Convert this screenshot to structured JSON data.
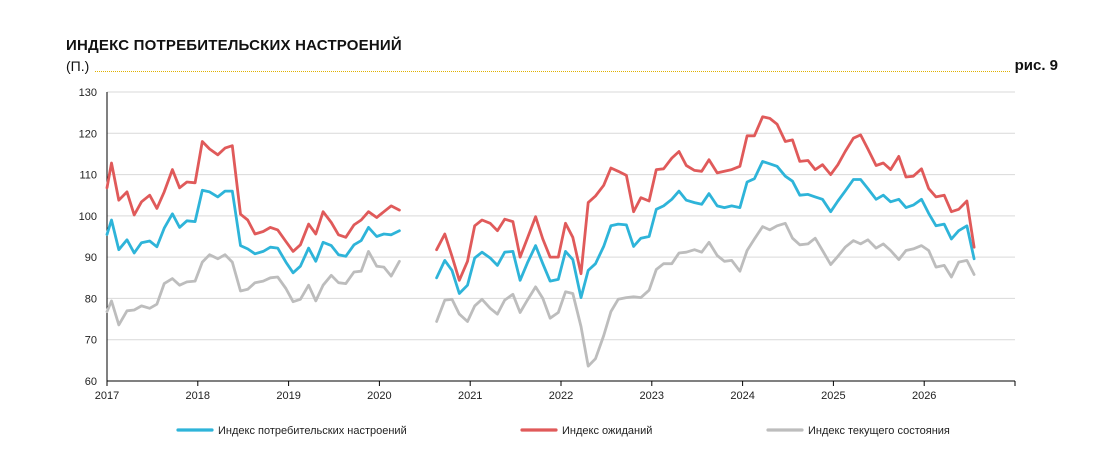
{
  "header": {
    "title": "ИНДЕКС ПОТРЕБИТЕЛЬСКИХ НАСТРОЕНИЙ",
    "unit": "(П.)",
    "figure": "рис. 9"
  },
  "chart_data": {
    "type": "line",
    "ylim": [
      60,
      130
    ],
    "yticks": [
      60,
      70,
      80,
      90,
      100,
      110,
      120,
      130
    ],
    "xlim": [
      2017.0,
      2027.0
    ],
    "xticks": [
      "2017",
      "2018",
      "2019",
      "2020",
      "2021",
      "2022",
      "2023",
      "2024",
      "2025",
      "2026"
    ],
    "grid": "horizontal",
    "legend_position": "bottom",
    "colors": {
      "axis": "#000000",
      "grid": "#d9d9d9",
      "rule": "#e0b200"
    },
    "series": [
      {
        "name": "Индекс потребительских настроений",
        "color": "#2eb4d9",
        "segments": [
          {
            "x": [
              2017.0,
              2017.05,
              2017.13,
              2017.22,
              2017.3,
              2017.38,
              2017.47,
              2017.55,
              2017.63,
              2017.72,
              2017.8,
              2017.88,
              2017.97,
              2018.05,
              2018.13,
              2018.22,
              2018.3,
              2018.38,
              2018.47,
              2018.55,
              2018.63,
              2018.72,
              2018.8,
              2018.88,
              2018.97,
              2019.05,
              2019.13,
              2019.22,
              2019.3,
              2019.38,
              2019.47,
              2019.55,
              2019.63,
              2019.72,
              2019.8,
              2019.88,
              2019.97,
              2020.05,
              2020.13,
              2020.22
            ],
            "y": [
              95.5,
              99.0,
              91.8,
              94.2,
              91.0,
              93.5,
              93.9,
              92.5,
              97.0,
              100.5,
              97.2,
              98.8,
              98.6,
              106.2,
              105.8,
              104.6,
              106.0,
              106.0,
              92.8,
              92.0,
              90.8,
              91.4,
              92.4,
              92.2,
              88.8,
              86.2,
              87.8,
              92.2,
              89.0,
              93.6,
              92.8,
              90.6,
              90.2,
              93.0,
              94.0,
              97.2,
              95.0,
              95.6,
              95.4,
              96.4
            ]
          },
          {
            "x": [
              2020.63,
              2020.72,
              2020.8,
              2020.88,
              2020.97,
              2021.05,
              2021.13,
              2021.22,
              2021.3,
              2021.38,
              2021.47,
              2021.55,
              2021.63,
              2021.72,
              2021.8,
              2021.88,
              2021.97,
              2022.05,
              2022.13,
              2022.22,
              2022.3,
              2022.38,
              2022.47,
              2022.55,
              2022.63,
              2022.72,
              2022.8,
              2022.88,
              2022.97,
              2023.05,
              2023.13,
              2023.22,
              2023.3,
              2023.38,
              2023.47,
              2023.55,
              2023.63,
              2023.72,
              2023.8,
              2023.88,
              2023.97,
              2024.05,
              2024.13,
              2024.22,
              2024.3,
              2024.38,
              2024.47,
              2024.55,
              2024.63,
              2024.72,
              2024.8,
              2024.88,
              2024.97,
              2025.05,
              2025.13,
              2025.22,
              2025.3,
              2025.38,
              2025.47,
              2025.55,
              2025.63,
              2025.72,
              2025.8,
              2025.88,
              2025.97,
              2026.05,
              2026.13,
              2026.22,
              2026.3,
              2026.38,
              2026.47,
              2026.55
            ],
            "y": [
              85.0,
              89.2,
              86.8,
              81.2,
              83.2,
              89.8,
              91.2,
              89.8,
              88.0,
              91.2,
              91.4,
              84.4,
              88.6,
              92.8,
              88.4,
              84.2,
              84.6,
              91.4,
              89.4,
              80.2,
              86.8,
              88.4,
              92.6,
              97.6,
              98.0,
              97.8,
              92.6,
              94.6,
              95.0,
              101.6,
              102.4,
              104.0,
              106.0,
              103.8,
              103.2,
              102.8,
              105.4,
              102.4,
              102.0,
              102.4,
              102.0,
              108.2,
              109.0,
              113.2,
              112.6,
              112.0,
              109.6,
              108.4,
              105.0,
              105.2,
              104.6,
              104.0,
              101.0,
              103.6,
              106.0,
              108.8,
              108.8,
              106.6,
              104.0,
              105.0,
              103.4,
              104.0,
              102.0,
              102.6,
              104.0,
              100.6,
              97.6,
              98.0,
              94.4,
              96.4,
              97.6,
              89.6
            ]
          }
        ]
      },
      {
        "name": "Индекс ожиданий",
        "color": "#e05a5a",
        "segments": [
          {
            "x": [
              2017.0,
              2017.05,
              2017.13,
              2017.22,
              2017.3,
              2017.38,
              2017.47,
              2017.55,
              2017.63,
              2017.72,
              2017.8,
              2017.88,
              2017.97,
              2018.05,
              2018.13,
              2018.22,
              2018.3,
              2018.38,
              2018.47,
              2018.55,
              2018.63,
              2018.72,
              2018.8,
              2018.88,
              2018.97,
              2019.05,
              2019.13,
              2019.22,
              2019.3,
              2019.38,
              2019.47,
              2019.55,
              2019.63,
              2019.72,
              2019.8,
              2019.88,
              2019.97,
              2020.05,
              2020.13,
              2020.22
            ],
            "y": [
              106.8,
              112.8,
              103.8,
              105.8,
              100.2,
              103.4,
              105.0,
              101.8,
              105.8,
              111.2,
              106.8,
              108.2,
              108.0,
              118.0,
              116.2,
              114.8,
              116.4,
              117.0,
              100.4,
              99.0,
              95.6,
              96.2,
              97.2,
              96.6,
              93.8,
              91.4,
              93.0,
              98.0,
              95.6,
              101.0,
              98.4,
              95.4,
              94.8,
              97.8,
              99.0,
              101.0,
              99.6,
              101.0,
              102.4,
              101.4
            ]
          },
          {
            "x": [
              2020.63,
              2020.72,
              2020.8,
              2020.88,
              2020.97,
              2021.05,
              2021.13,
              2021.22,
              2021.3,
              2021.38,
              2021.47,
              2021.55,
              2021.63,
              2021.72,
              2021.8,
              2021.88,
              2021.97,
              2022.05,
              2022.13,
              2022.22,
              2022.3,
              2022.38,
              2022.47,
              2022.55,
              2022.63,
              2022.72,
              2022.8,
              2022.88,
              2022.97,
              2023.05,
              2023.13,
              2023.22,
              2023.3,
              2023.38,
              2023.47,
              2023.55,
              2023.63,
              2023.72,
              2023.8,
              2023.88,
              2023.97,
              2024.05,
              2024.13,
              2024.22,
              2024.3,
              2024.38,
              2024.47,
              2024.55,
              2024.63,
              2024.72,
              2024.8,
              2024.88,
              2024.97,
              2025.05,
              2025.13,
              2025.22,
              2025.3,
              2025.38,
              2025.47,
              2025.55,
              2025.63,
              2025.72,
              2025.8,
              2025.88,
              2025.97,
              2026.05,
              2026.13,
              2026.22,
              2026.3,
              2026.38,
              2026.47,
              2026.55
            ],
            "y": [
              91.8,
              95.6,
              90.2,
              84.4,
              89.0,
              97.6,
              99.0,
              98.2,
              96.4,
              99.2,
              98.6,
              90.0,
              94.6,
              99.8,
              94.4,
              90.0,
              90.0,
              98.2,
              94.8,
              86.0,
              103.2,
              104.8,
              107.4,
              111.6,
              110.8,
              109.8,
              101.0,
              104.4,
              103.6,
              111.2,
              111.4,
              114.0,
              115.6,
              112.2,
              111.0,
              110.8,
              113.6,
              110.4,
              110.8,
              111.2,
              112.0,
              119.4,
              119.4,
              124.0,
              123.6,
              122.2,
              118.0,
              118.4,
              113.2,
              113.4,
              111.2,
              112.4,
              110.0,
              112.4,
              115.6,
              118.8,
              119.6,
              116.2,
              112.2,
              112.8,
              111.2,
              114.4,
              109.4,
              109.6,
              111.4,
              106.6,
              104.6,
              105.0,
              101.0,
              101.6,
              103.6,
              92.4
            ]
          }
        ]
      },
      {
        "name": "Индекс текущего состояния",
        "color": "#bdbdbd",
        "segments": [
          {
            "x": [
              2017.0,
              2017.05,
              2017.13,
              2017.22,
              2017.3,
              2017.38,
              2017.47,
              2017.55,
              2017.63,
              2017.72,
              2017.8,
              2017.88,
              2017.97,
              2018.05,
              2018.13,
              2018.22,
              2018.3,
              2018.38,
              2018.47,
              2018.55,
              2018.63,
              2018.72,
              2018.8,
              2018.88,
              2018.97,
              2019.05,
              2019.13,
              2019.22,
              2019.3,
              2019.38,
              2019.47,
              2019.55,
              2019.63,
              2019.72,
              2019.8,
              2019.88,
              2019.97,
              2020.05,
              2020.13,
              2020.22
            ],
            "y": [
              76.8,
              79.4,
              73.6,
              77.0,
              77.2,
              78.2,
              77.6,
              78.6,
              83.6,
              84.8,
              83.2,
              84.0,
              84.2,
              88.8,
              90.6,
              89.6,
              90.6,
              88.8,
              81.8,
              82.2,
              83.8,
              84.2,
              85.0,
              85.2,
              82.4,
              79.2,
              79.8,
              83.2,
              79.4,
              83.2,
              85.6,
              83.8,
              83.6,
              86.4,
              86.6,
              91.4,
              87.8,
              87.6,
              85.4,
              89.0
            ]
          },
          {
            "x": [
              2020.63,
              2020.72,
              2020.8,
              2020.88,
              2020.97,
              2021.05,
              2021.13,
              2021.22,
              2021.3,
              2021.38,
              2021.47,
              2021.55,
              2021.63,
              2021.72,
              2021.8,
              2021.88,
              2021.97,
              2022.05,
              2022.13,
              2022.22,
              2022.3,
              2022.38,
              2022.47,
              2022.55,
              2022.63,
              2022.72,
              2022.8,
              2022.88,
              2022.97,
              2023.05,
              2023.13,
              2023.22,
              2023.3,
              2023.38,
              2023.47,
              2023.55,
              2023.63,
              2023.72,
              2023.8,
              2023.88,
              2023.97,
              2024.05,
              2024.13,
              2024.22,
              2024.3,
              2024.38,
              2024.47,
              2024.55,
              2024.63,
              2024.72,
              2024.8,
              2024.88,
              2024.97,
              2025.05,
              2025.13,
              2025.22,
              2025.3,
              2025.38,
              2025.47,
              2025.55,
              2025.63,
              2025.72,
              2025.8,
              2025.88,
              2025.97,
              2026.05,
              2026.13,
              2026.22,
              2026.3,
              2026.38,
              2026.47,
              2026.55
            ],
            "y": [
              74.4,
              79.6,
              79.8,
              76.2,
              74.4,
              78.2,
              79.8,
              77.6,
              76.2,
              79.6,
              81.0,
              76.6,
              79.6,
              82.8,
              80.0,
              75.2,
              76.6,
              81.6,
              81.2,
              73.2,
              63.6,
              65.4,
              71.0,
              76.8,
              79.8,
              80.2,
              80.4,
              80.2,
              82.0,
              87.0,
              88.4,
              88.4,
              91.0,
              91.2,
              91.8,
              91.2,
              93.6,
              90.4,
              89.0,
              89.2,
              86.6,
              91.6,
              94.4,
              97.4,
              96.6,
              97.6,
              98.2,
              94.6,
              93.0,
              93.2,
              94.6,
              91.6,
              88.2,
              90.2,
              92.4,
              94.0,
              93.2,
              94.2,
              92.2,
              93.2,
              91.6,
              89.4,
              91.6,
              92.0,
              92.8,
              91.6,
              87.6,
              88.0,
              85.2,
              88.8,
              89.2,
              85.8
            ]
          }
        ]
      }
    ]
  }
}
